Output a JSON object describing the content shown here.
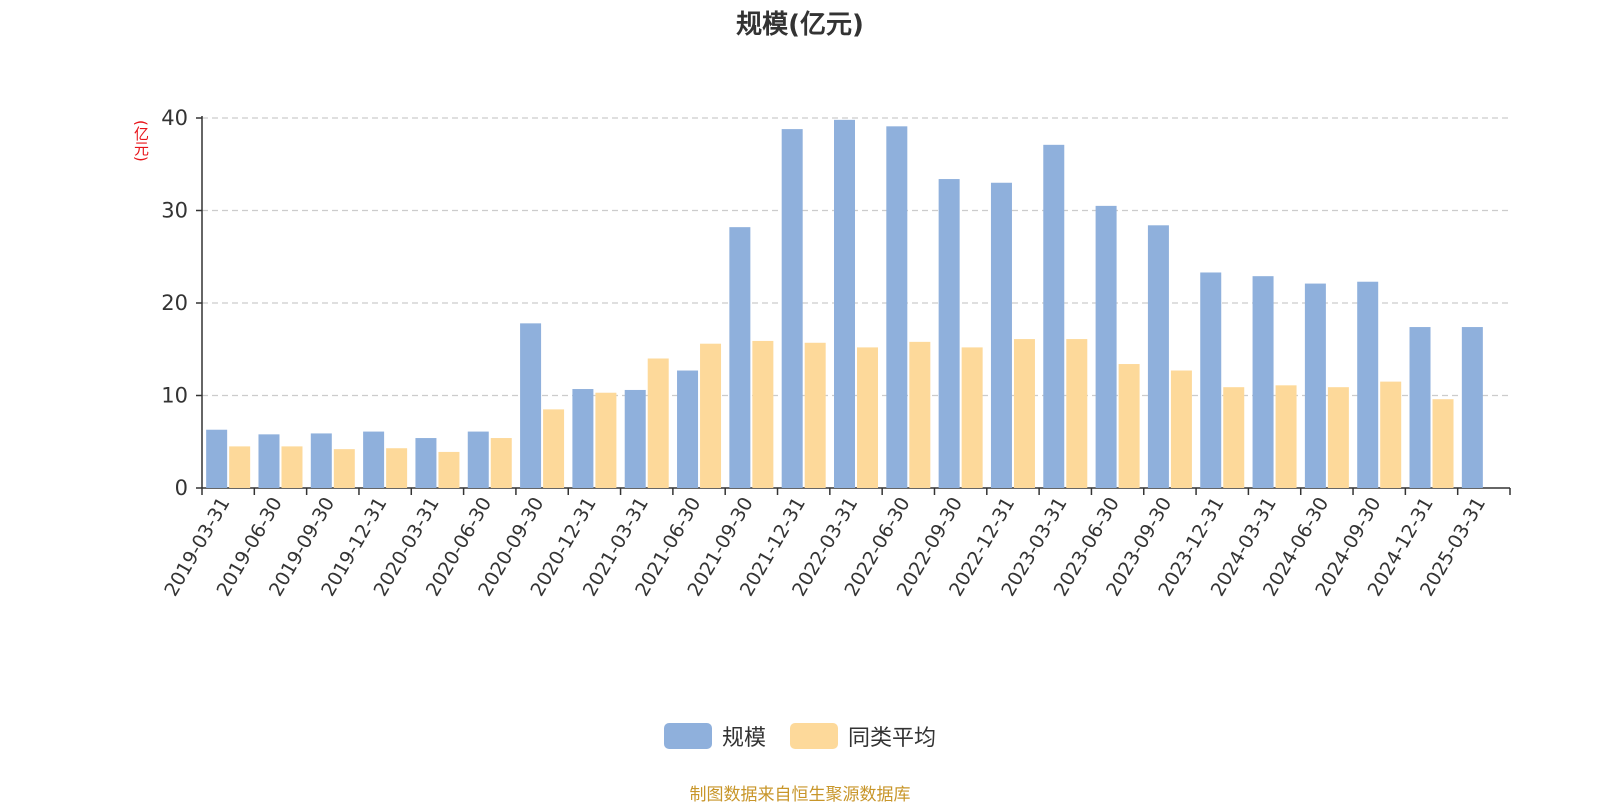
{
  "title": "规模(亿元)",
  "y_unit": "(亿元)",
  "source": "制图数据来自恒生聚源数据库",
  "colors": {
    "scale": "#8fb0dc",
    "peer_average": "#fdd99a",
    "unit_label": "#e8141a",
    "source_text": "#c8962a",
    "grid": "#cccccc",
    "axis": "#333333"
  },
  "chart_data": {
    "type": "bar",
    "categories": [
      "2019-03-31",
      "2019-06-30",
      "2019-09-30",
      "2019-12-31",
      "2020-03-31",
      "2020-06-30",
      "2020-09-30",
      "2020-12-31",
      "2021-03-31",
      "2021-06-30",
      "2021-09-30",
      "2021-12-31",
      "2022-03-31",
      "2022-06-30",
      "2022-09-30",
      "2022-12-31",
      "2023-03-31",
      "2023-06-30",
      "2023-09-30",
      "2023-12-31",
      "2024-03-31",
      "2024-06-30",
      "2024-09-30",
      "2024-12-31",
      "2025-03-31"
    ],
    "series": [
      {
        "name": "规模",
        "values": [
          6.3,
          5.8,
          5.9,
          6.1,
          5.4,
          6.1,
          17.8,
          10.7,
          10.6,
          12.7,
          28.2,
          38.8,
          39.8,
          39.1,
          33.4,
          33.0,
          37.1,
          30.5,
          28.4,
          23.3,
          22.9,
          22.1,
          22.3,
          17.4,
          17.4
        ]
      },
      {
        "name": "同类平均",
        "values": [
          4.5,
          4.5,
          4.2,
          4.3,
          3.9,
          5.4,
          8.5,
          10.3,
          14.0,
          15.6,
          15.9,
          15.7,
          15.2,
          15.8,
          15.2,
          16.1,
          16.1,
          13.4,
          12.7,
          10.9,
          11.1,
          10.9,
          11.5,
          9.6,
          null
        ]
      }
    ],
    "yticks": [
      0,
      10,
      20,
      30,
      40
    ],
    "ylim": [
      0,
      40
    ],
    "grid": true,
    "legend_position": "bottom-center"
  }
}
